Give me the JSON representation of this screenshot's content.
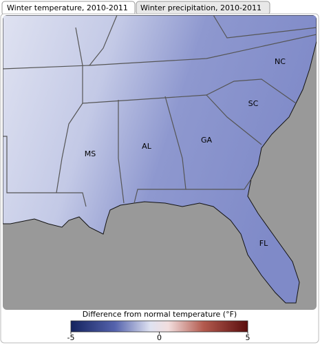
{
  "tabs": [
    "Winter temperature, 2010-2011",
    "Winter precipitation, 2010-2011"
  ],
  "map": {
    "state_labels": [
      "NC",
      "SC",
      "GA",
      "AL",
      "MS",
      "FL"
    ]
  },
  "legend": {
    "title": "Difference from normal temperature (°F)",
    "ticks": [
      -5,
      0,
      5
    ]
  }
}
